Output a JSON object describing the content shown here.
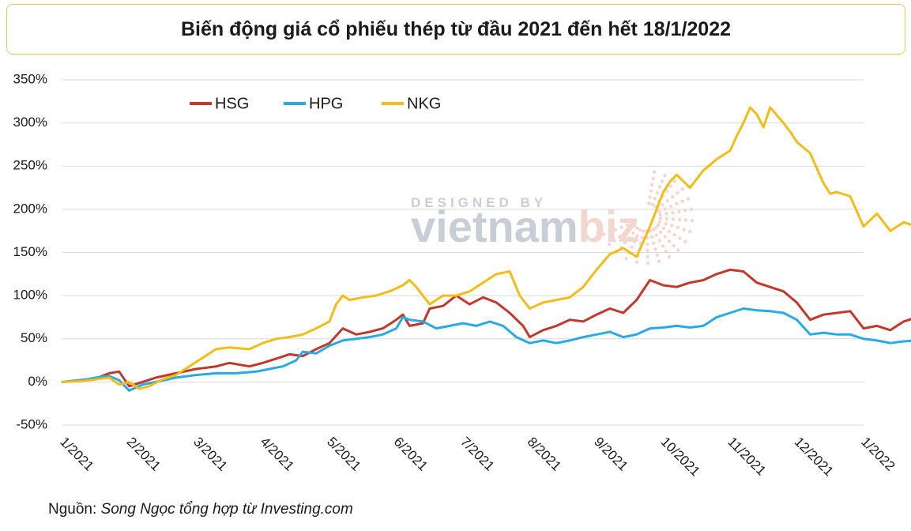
{
  "title": "Biến động giá cổ phiếu thép từ đầu 2021 đến hết 18/1/2022",
  "source": {
    "prefix": "Nguồn:",
    "body": "Song Ngọc tổng hợp từ Investing.com"
  },
  "watermark": {
    "line1": "DESIGNED BY",
    "line2a": "vietnam",
    "line2b": "biz"
  },
  "colors": {
    "HSG": "#c0392b",
    "HPG": "#2aaae2",
    "NKG": "#f0bd1b",
    "grid": "#d9d9d9"
  },
  "chart_data": {
    "type": "line",
    "title": "Biến động giá cổ phiếu thép từ đầu 2021 đến hết 18/1/2022",
    "xlabel": "",
    "ylabel": "",
    "ylim": [
      -50,
      350
    ],
    "y_ticks": [
      350,
      300,
      250,
      200,
      150,
      100,
      50,
      0,
      -50
    ],
    "y_tick_labels": [
      "350%",
      "300%",
      "250%",
      "200%",
      "150%",
      "100%",
      "50%",
      "0%",
      "-50%"
    ],
    "x_tick_labels": [
      "1/2021",
      "2/2021",
      "3/2021",
      "4/2021",
      "5/2021",
      "6/2021",
      "7/2021",
      "8/2021",
      "9/2021",
      "10/2021",
      "11/2021",
      "12/2021",
      "1/2022"
    ],
    "x_unit": "months since 1/2021",
    "grid": true,
    "legend": "top-left",
    "series": [
      {
        "name": "HSG",
        "points": [
          [
            0,
            0
          ],
          [
            0.25,
            2
          ],
          [
            0.5,
            4
          ],
          [
            0.7,
            10
          ],
          [
            0.85,
            12
          ],
          [
            1.0,
            -5
          ],
          [
            1.2,
            0
          ],
          [
            1.4,
            5
          ],
          [
            1.7,
            10
          ],
          [
            2.0,
            15
          ],
          [
            2.3,
            18
          ],
          [
            2.5,
            22
          ],
          [
            2.8,
            18
          ],
          [
            3.0,
            22
          ],
          [
            3.2,
            27
          ],
          [
            3.4,
            32
          ],
          [
            3.6,
            30
          ],
          [
            3.8,
            38
          ],
          [
            4.0,
            45
          ],
          [
            4.2,
            62
          ],
          [
            4.4,
            55
          ],
          [
            4.6,
            58
          ],
          [
            4.8,
            62
          ],
          [
            5.0,
            72
          ],
          [
            5.1,
            78
          ],
          [
            5.2,
            65
          ],
          [
            5.4,
            68
          ],
          [
            5.5,
            85
          ],
          [
            5.7,
            88
          ],
          [
            5.9,
            100
          ],
          [
            6.1,
            90
          ],
          [
            6.3,
            98
          ],
          [
            6.5,
            92
          ],
          [
            6.7,
            80
          ],
          [
            6.9,
            65
          ],
          [
            7.0,
            52
          ],
          [
            7.2,
            60
          ],
          [
            7.4,
            65
          ],
          [
            7.6,
            72
          ],
          [
            7.8,
            70
          ],
          [
            8.0,
            78
          ],
          [
            8.2,
            85
          ],
          [
            8.4,
            80
          ],
          [
            8.6,
            95
          ],
          [
            8.8,
            118
          ],
          [
            9.0,
            112
          ],
          [
            9.2,
            110
          ],
          [
            9.4,
            115
          ],
          [
            9.6,
            118
          ],
          [
            9.8,
            125
          ],
          [
            10.0,
            130
          ],
          [
            10.2,
            128
          ],
          [
            10.4,
            115
          ],
          [
            10.6,
            110
          ],
          [
            10.8,
            105
          ],
          [
            11.0,
            92
          ],
          [
            11.2,
            72
          ],
          [
            11.4,
            78
          ],
          [
            11.6,
            80
          ],
          [
            11.8,
            82
          ],
          [
            12.0,
            62
          ],
          [
            12.2,
            65
          ],
          [
            12.4,
            60
          ],
          [
            12.6,
            70
          ],
          [
            12.8,
            75
          ],
          [
            13.0,
            60
          ],
          [
            13.1,
            63
          ],
          [
            13.2,
            53
          ],
          [
            13.3,
            55
          ]
        ]
      },
      {
        "name": "HPG",
        "points": [
          [
            0,
            0
          ],
          [
            0.3,
            2
          ],
          [
            0.5,
            5
          ],
          [
            0.7,
            7
          ],
          [
            0.85,
            2
          ],
          [
            1.0,
            -10
          ],
          [
            1.2,
            -3
          ],
          [
            1.4,
            0
          ],
          [
            1.7,
            5
          ],
          [
            2.0,
            8
          ],
          [
            2.3,
            10
          ],
          [
            2.6,
            10
          ],
          [
            2.9,
            12
          ],
          [
            3.1,
            15
          ],
          [
            3.3,
            18
          ],
          [
            3.5,
            25
          ],
          [
            3.6,
            35
          ],
          [
            3.8,
            33
          ],
          [
            4.0,
            42
          ],
          [
            4.2,
            48
          ],
          [
            4.4,
            50
          ],
          [
            4.6,
            52
          ],
          [
            4.8,
            55
          ],
          [
            5.0,
            62
          ],
          [
            5.1,
            75
          ],
          [
            5.2,
            72
          ],
          [
            5.4,
            70
          ],
          [
            5.6,
            62
          ],
          [
            5.8,
            65
          ],
          [
            6.0,
            68
          ],
          [
            6.2,
            65
          ],
          [
            6.4,
            70
          ],
          [
            6.6,
            65
          ],
          [
            6.8,
            52
          ],
          [
            7.0,
            45
          ],
          [
            7.2,
            48
          ],
          [
            7.4,
            45
          ],
          [
            7.6,
            48
          ],
          [
            7.8,
            52
          ],
          [
            8.0,
            55
          ],
          [
            8.2,
            58
          ],
          [
            8.4,
            52
          ],
          [
            8.6,
            55
          ],
          [
            8.8,
            62
          ],
          [
            9.0,
            63
          ],
          [
            9.2,
            65
          ],
          [
            9.4,
            63
          ],
          [
            9.6,
            65
          ],
          [
            9.8,
            75
          ],
          [
            10.0,
            80
          ],
          [
            10.2,
            85
          ],
          [
            10.4,
            83
          ],
          [
            10.6,
            82
          ],
          [
            10.8,
            80
          ],
          [
            11.0,
            72
          ],
          [
            11.2,
            55
          ],
          [
            11.4,
            57
          ],
          [
            11.6,
            55
          ],
          [
            11.8,
            55
          ],
          [
            12.0,
            50
          ],
          [
            12.2,
            48
          ],
          [
            12.4,
            45
          ],
          [
            12.6,
            47
          ],
          [
            12.8,
            48
          ],
          [
            13.0,
            48
          ],
          [
            13.2,
            42
          ]
        ]
      },
      {
        "name": "NKG",
        "points": [
          [
            0,
            0
          ],
          [
            0.3,
            1
          ],
          [
            0.5,
            3
          ],
          [
            0.7,
            5
          ],
          [
            0.85,
            -3
          ],
          [
            1.0,
            0
          ],
          [
            1.15,
            -8
          ],
          [
            1.3,
            -5
          ],
          [
            1.5,
            3
          ],
          [
            1.7,
            8
          ],
          [
            1.9,
            18
          ],
          [
            2.1,
            28
          ],
          [
            2.3,
            38
          ],
          [
            2.5,
            40
          ],
          [
            2.8,
            38
          ],
          [
            3.0,
            45
          ],
          [
            3.2,
            50
          ],
          [
            3.4,
            52
          ],
          [
            3.6,
            55
          ],
          [
            3.8,
            62
          ],
          [
            4.0,
            70
          ],
          [
            4.1,
            90
          ],
          [
            4.2,
            100
          ],
          [
            4.3,
            95
          ],
          [
            4.5,
            98
          ],
          [
            4.7,
            100
          ],
          [
            4.9,
            105
          ],
          [
            5.1,
            112
          ],
          [
            5.2,
            118
          ],
          [
            5.3,
            110
          ],
          [
            5.5,
            90
          ],
          [
            5.7,
            100
          ],
          [
            5.9,
            100
          ],
          [
            6.1,
            105
          ],
          [
            6.3,
            115
          ],
          [
            6.5,
            125
          ],
          [
            6.7,
            128
          ],
          [
            6.85,
            100
          ],
          [
            7.0,
            85
          ],
          [
            7.2,
            92
          ],
          [
            7.4,
            95
          ],
          [
            7.6,
            98
          ],
          [
            7.8,
            110
          ],
          [
            8.0,
            130
          ],
          [
            8.2,
            148
          ],
          [
            8.4,
            155
          ],
          [
            8.6,
            145
          ],
          [
            8.8,
            180
          ],
          [
            9.0,
            220
          ],
          [
            9.1,
            232
          ],
          [
            9.2,
            240
          ],
          [
            9.4,
            225
          ],
          [
            9.6,
            245
          ],
          [
            9.8,
            258
          ],
          [
            10.0,
            268
          ],
          [
            10.1,
            285
          ],
          [
            10.2,
            300
          ],
          [
            10.3,
            318
          ],
          [
            10.4,
            310
          ],
          [
            10.5,
            295
          ],
          [
            10.6,
            318
          ],
          [
            10.8,
            300
          ],
          [
            10.9,
            290
          ],
          [
            11.0,
            278
          ],
          [
            11.2,
            265
          ],
          [
            11.4,
            230
          ],
          [
            11.5,
            218
          ],
          [
            11.6,
            220
          ],
          [
            11.8,
            215
          ],
          [
            12.0,
            180
          ],
          [
            12.2,
            195
          ],
          [
            12.4,
            175
          ],
          [
            12.6,
            185
          ],
          [
            12.8,
            180
          ],
          [
            13.0,
            178
          ],
          [
            13.15,
            168
          ],
          [
            13.3,
            150
          ]
        ]
      }
    ]
  }
}
